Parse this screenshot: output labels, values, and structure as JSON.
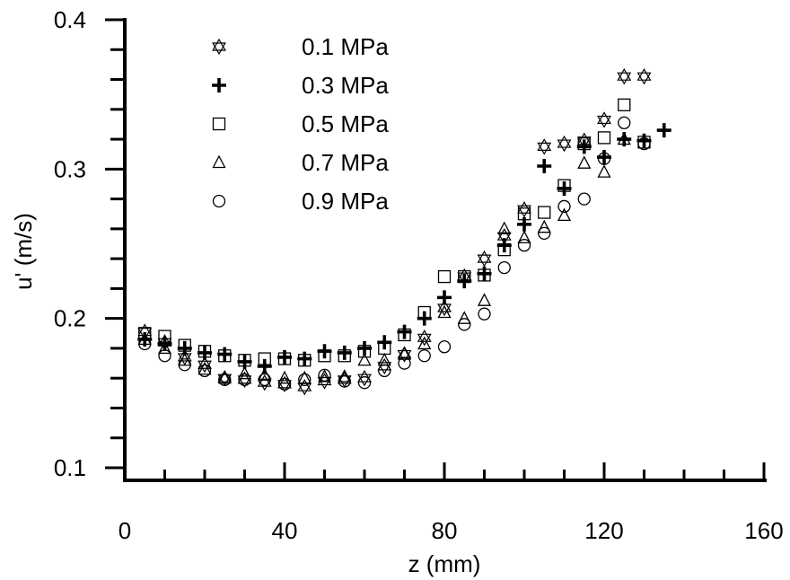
{
  "chart_data": {
    "type": "scatter",
    "title": "",
    "xlabel": "z (mm)",
    "ylabel": "u' (m/s)",
    "xlim": [
      0,
      160
    ],
    "ylim": [
      0.1,
      0.4
    ],
    "x_ticks": [
      0,
      40,
      80,
      120,
      160
    ],
    "x_tick_labels": [
      "0",
      "40",
      "80",
      "120",
      "160"
    ],
    "x_minor_step": 10,
    "y_ticks": [
      0.1,
      0.2,
      0.3,
      0.4
    ],
    "y_tick_labels": [
      "0.1",
      "0.2",
      "0.3",
      "0.4"
    ],
    "y_minor_step": 0.02,
    "grid": false,
    "legend_placement": "top-left",
    "series": [
      {
        "name": "0.1 MPa",
        "marker": "star",
        "x": [
          5,
          10,
          15,
          20,
          25,
          30,
          35,
          40,
          45,
          50,
          55,
          60,
          65,
          70,
          75,
          80,
          85,
          90,
          95,
          100,
          105,
          110,
          115,
          120,
          125,
          130
        ],
        "y": [
          0.191,
          0.184,
          0.174,
          0.169,
          0.16,
          0.159,
          0.157,
          0.156,
          0.154,
          0.158,
          0.159,
          0.16,
          0.168,
          0.176,
          0.187,
          0.207,
          0.228,
          0.24,
          0.255,
          0.273,
          0.315,
          0.317,
          0.319,
          0.333,
          0.362,
          0.362
        ]
      },
      {
        "name": "0.3 MPa",
        "marker": "plus",
        "x": [
          5,
          10,
          15,
          20,
          25,
          30,
          35,
          40,
          45,
          50,
          55,
          60,
          65,
          70,
          75,
          80,
          85,
          90,
          95,
          100,
          105,
          110,
          115,
          120,
          125,
          130,
          135
        ],
        "y": [
          0.186,
          0.183,
          0.18,
          0.177,
          0.176,
          0.171,
          0.168,
          0.174,
          0.173,
          0.178,
          0.177,
          0.18,
          0.184,
          0.191,
          0.2,
          0.214,
          0.225,
          0.23,
          0.249,
          0.263,
          0.302,
          0.287,
          0.315,
          0.308,
          0.32,
          0.319,
          0.326
        ]
      },
      {
        "name": "0.5 MPa",
        "marker": "square",
        "x": [
          5,
          10,
          15,
          20,
          25,
          30,
          35,
          40,
          45,
          50,
          55,
          60,
          65,
          70,
          75,
          80,
          85,
          90,
          95,
          100,
          105,
          110,
          115,
          120,
          125,
          130
        ],
        "y": [
          0.19,
          0.188,
          0.182,
          0.178,
          0.175,
          0.172,
          0.173,
          0.173,
          0.172,
          0.175,
          0.175,
          0.178,
          0.18,
          0.189,
          0.204,
          0.228,
          0.228,
          0.229,
          0.246,
          0.27,
          0.271,
          0.289,
          0.317,
          0.321,
          0.343,
          0.318
        ]
      },
      {
        "name": "0.7 MPa",
        "marker": "triangle",
        "x": [
          5,
          10,
          15,
          20,
          25,
          30,
          35,
          40,
          45,
          50,
          55,
          60,
          65,
          70,
          75,
          80,
          85,
          90,
          95,
          100,
          105,
          110,
          115,
          120,
          125
        ],
        "y": [
          0.186,
          0.18,
          0.172,
          0.166,
          0.16,
          0.163,
          0.162,
          0.16,
          0.16,
          0.161,
          0.161,
          0.172,
          0.172,
          0.176,
          0.183,
          0.204,
          0.2,
          0.212,
          0.26,
          0.254,
          0.261,
          0.269,
          0.304,
          0.298,
          0.32
        ]
      },
      {
        "name": "0.9 MPa",
        "marker": "circle",
        "x": [
          5,
          10,
          15,
          20,
          25,
          30,
          35,
          40,
          45,
          50,
          55,
          60,
          65,
          70,
          75,
          80,
          85,
          90,
          95,
          100,
          105,
          110,
          115,
          120,
          125,
          130
        ],
        "y": [
          0.183,
          0.175,
          0.169,
          0.165,
          0.159,
          0.159,
          0.159,
          0.156,
          0.159,
          0.162,
          0.158,
          0.157,
          0.165,
          0.17,
          0.175,
          0.181,
          0.196,
          0.203,
          0.234,
          0.249,
          0.257,
          0.275,
          0.28,
          0.307,
          0.331,
          0.317
        ]
      }
    ]
  }
}
